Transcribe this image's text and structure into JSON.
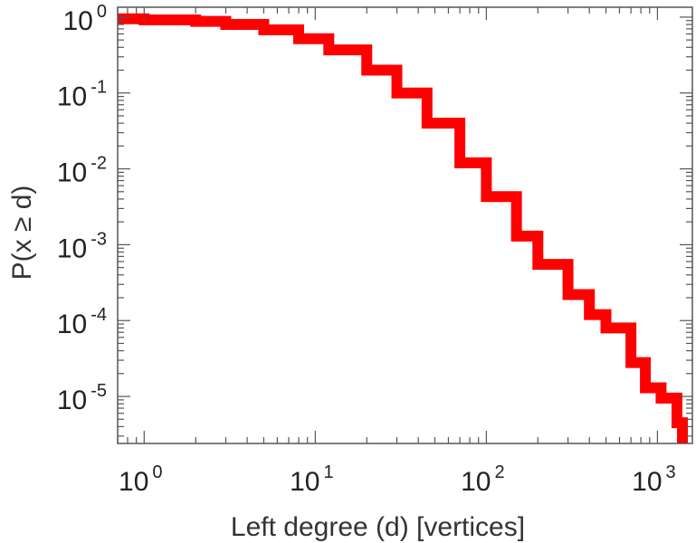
{
  "chart_data": {
    "type": "line",
    "title": "",
    "xlabel": "Left degree (d) [vertices]",
    "ylabel": "P(x ≥ d)",
    "x_scale": "log",
    "y_scale": "log",
    "xlim": [
      0.7,
      1600
    ],
    "ylim": [
      2.4e-06,
      1.35
    ],
    "x_ticks": [
      {
        "value": 1,
        "base": "10",
        "exp": "0"
      },
      {
        "value": 10,
        "base": "10",
        "exp": "1"
      },
      {
        "value": 100,
        "base": "10",
        "exp": "2"
      },
      {
        "value": 1000,
        "base": "10",
        "exp": "3"
      }
    ],
    "y_ticks": [
      {
        "value": 1,
        "base": "10",
        "exp": "0"
      },
      {
        "value": 0.1,
        "base": "10",
        "exp": "-1"
      },
      {
        "value": 0.01,
        "base": "10",
        "exp": "-2"
      },
      {
        "value": 0.001,
        "base": "10",
        "exp": "-3"
      },
      {
        "value": 0.0001,
        "base": "10",
        "exp": "-4"
      },
      {
        "value": 1e-05,
        "base": "10",
        "exp": "-5"
      }
    ],
    "grid": false,
    "series": [
      {
        "color": "#ff0000",
        "style": "step",
        "x": [
          0.7,
          1,
          2,
          3,
          5,
          8,
          12,
          20,
          30,
          45,
          70,
          100,
          150,
          200,
          300,
          400,
          500,
          700,
          850,
          1000,
          1050,
          1150,
          1300,
          1400
        ],
        "y": [
          0.95,
          0.92,
          0.88,
          0.8,
          0.68,
          0.52,
          0.37,
          0.2,
          0.1,
          0.04,
          0.012,
          0.0043,
          0.0013,
          0.00055,
          0.00022,
          0.00012,
          8e-05,
          2.8e-05,
          1.3e-05,
          1.3e-05,
          9.5e-06,
          9.5e-06,
          4.5e-06,
          2.5e-06
        ]
      }
    ]
  }
}
